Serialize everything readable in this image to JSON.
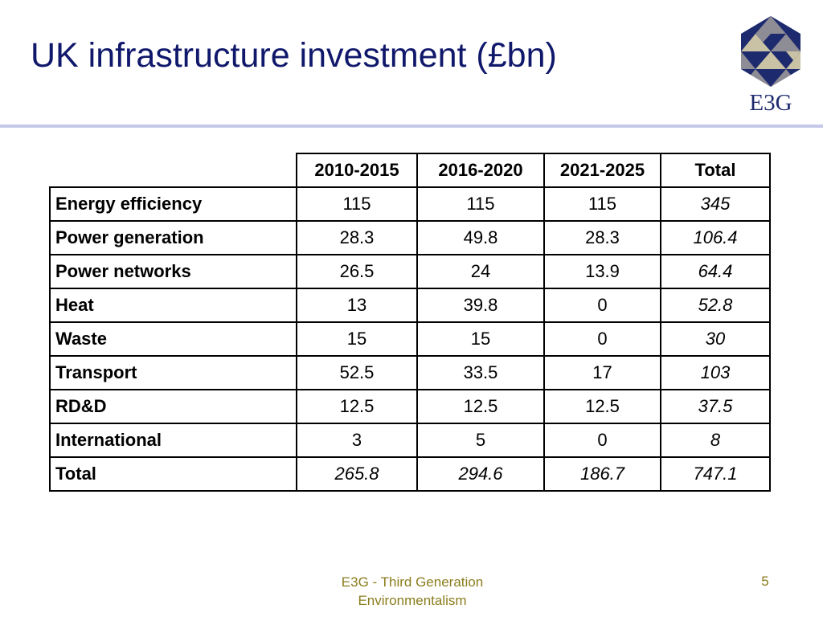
{
  "slide": {
    "title": "UK infrastructure investment (£bn)",
    "logo_text": "E3G",
    "footer": "E3G - Third Generation Environmentalism",
    "page_number": "5"
  },
  "table": {
    "columns": [
      "2010-2015",
      "2016-2020",
      "2021-2025",
      "Total"
    ],
    "rows": [
      {
        "label": "Energy efficiency",
        "values": [
          "115",
          "115",
          "115",
          "345"
        ]
      },
      {
        "label": "Power generation",
        "values": [
          "28.3",
          "49.8",
          "28.3",
          "106.4"
        ]
      },
      {
        "label": "Power networks",
        "values": [
          "26.5",
          "24",
          "13.9",
          "64.4"
        ]
      },
      {
        "label": "Heat",
        "values": [
          "13",
          "39.8",
          "0",
          "52.8"
        ]
      },
      {
        "label": "Waste",
        "values": [
          "15",
          "15",
          "0",
          "30"
        ]
      },
      {
        "label": "Transport",
        "values": [
          "52.5",
          "33.5",
          "17",
          "103"
        ]
      },
      {
        "label": "RD&D",
        "values": [
          "12.5",
          "12.5",
          "12.5",
          "37.5"
        ]
      },
      {
        "label": "International",
        "values": [
          "3",
          "5",
          "0",
          "8"
        ]
      },
      {
        "label": "Total",
        "values": [
          "265.8",
          "294.6",
          "186.7",
          "747.1"
        ]
      }
    ]
  },
  "colors": {
    "title": "#10186b",
    "rule": "#c6c8e8",
    "footer": "#8a7d1c",
    "logo_navy": "#1e2a6e",
    "logo_grey": "#8e8c94",
    "logo_light": "#c9c2a4"
  }
}
